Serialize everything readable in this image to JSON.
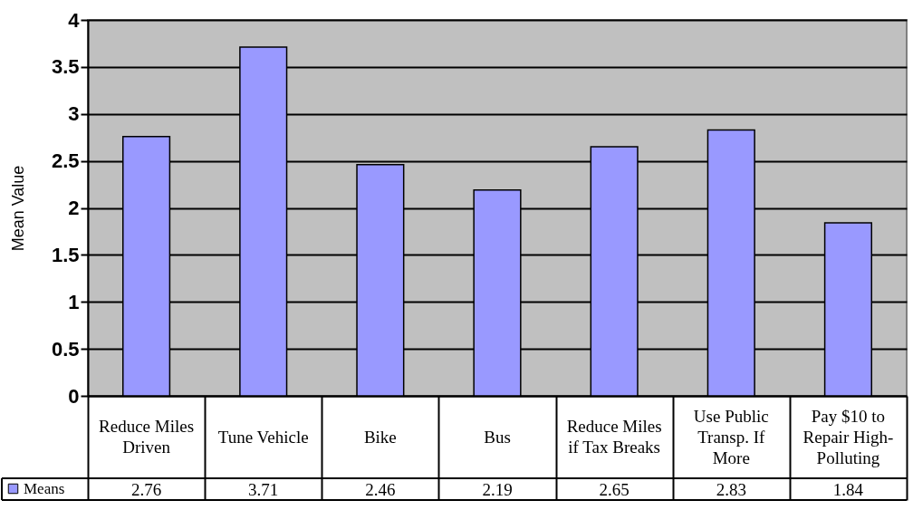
{
  "chart_data": {
    "type": "bar",
    "ylabel": "Mean Value",
    "categories": [
      "Reduce Miles Driven",
      "Tune Vehicle",
      "Bike",
      "Bus",
      "Reduce Miles if Tax Breaks",
      "Use Public Transp. If More",
      "Pay $10 to Repair High-Polluting"
    ],
    "series": [
      {
        "name": "Means",
        "color": "#9999ff",
        "values": [
          2.76,
          3.71,
          2.46,
          2.19,
          2.65,
          2.83,
          1.84
        ]
      }
    ],
    "ylim": [
      0,
      4
    ],
    "yticks": [
      0,
      0.5,
      1,
      1.5,
      2,
      2.5,
      3,
      3.5,
      4
    ],
    "grid": "y",
    "legend": "bottom left",
    "data_labels": true
  }
}
